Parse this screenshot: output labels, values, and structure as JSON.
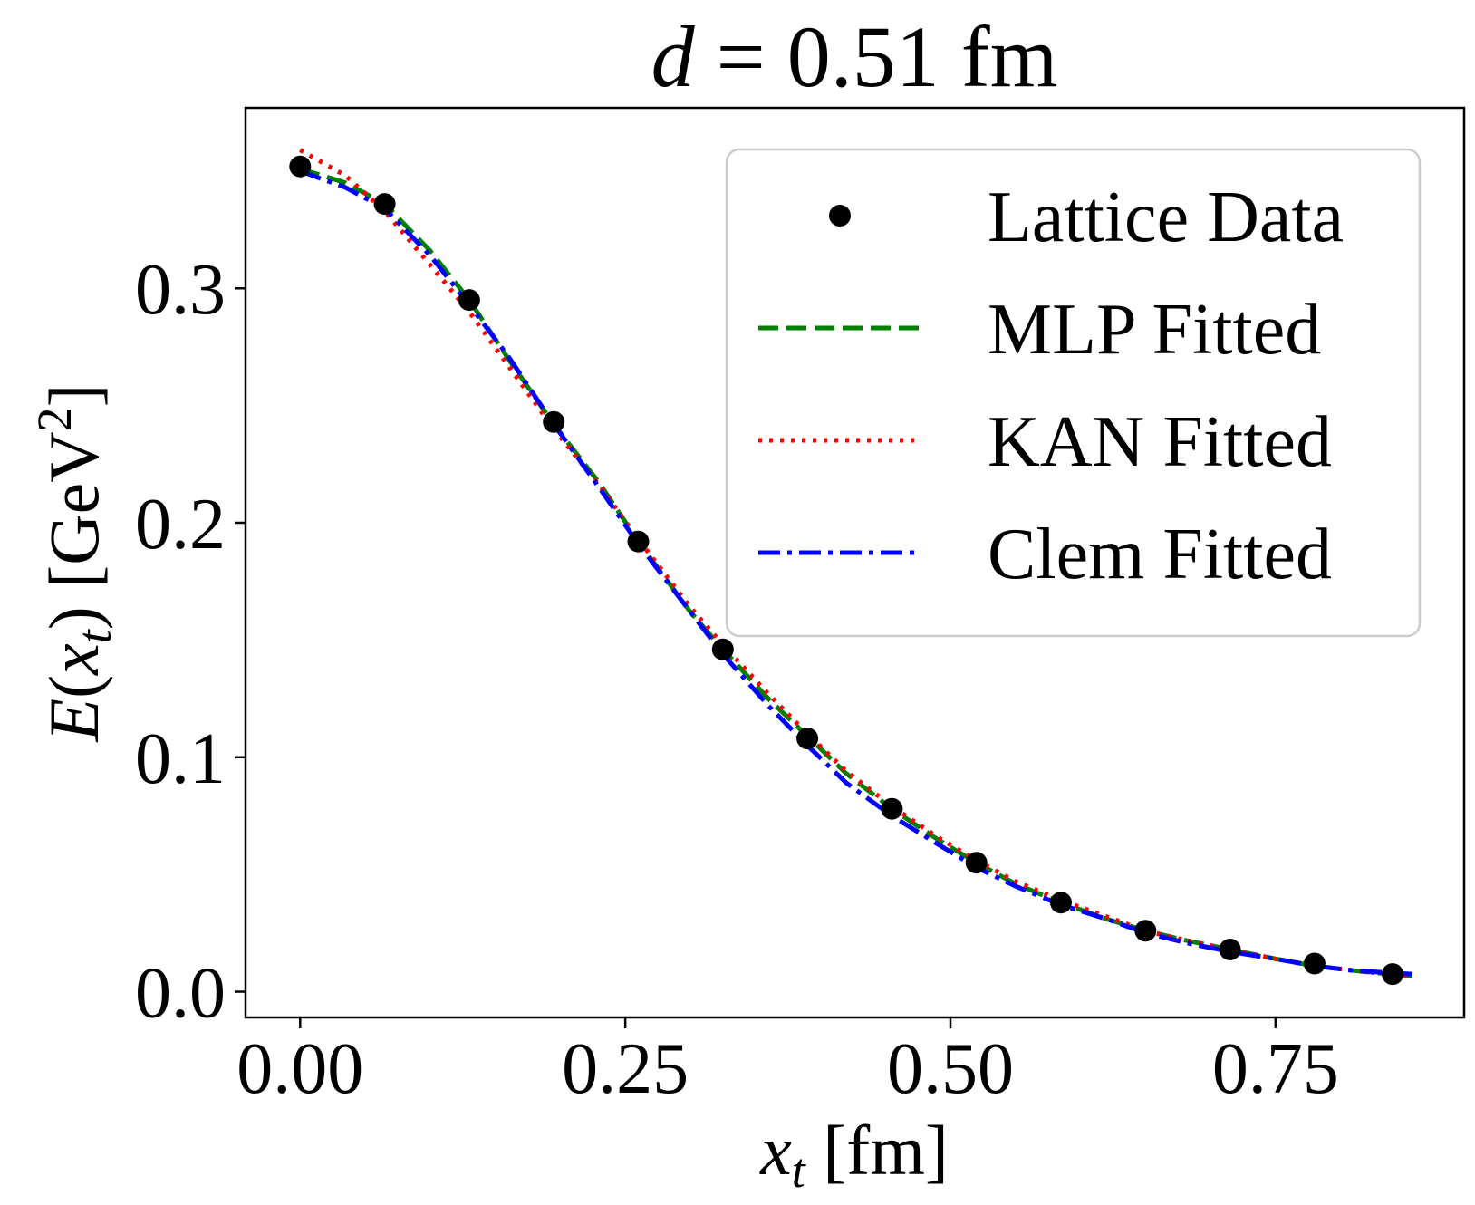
{
  "chart_data": {
    "type": "line",
    "title": {
      "var": "d",
      "rest": " = 0.51 fm"
    },
    "xlabel": {
      "var": "x",
      "sub": "t",
      "unit": " [fm]"
    },
    "ylabel": {
      "fn": "E",
      "var": "x",
      "sub": "t",
      "unit_pre": " [GeV",
      "unit_sup": "2",
      "unit_post": "]"
    },
    "xlim": [
      -0.042,
      0.895
    ],
    "ylim": [
      -0.011,
      0.377
    ],
    "xticks": [
      0.0,
      0.25,
      0.5,
      0.75
    ],
    "xtick_labels": [
      "0.00",
      "0.25",
      "0.50",
      "0.75"
    ],
    "yticks": [
      0.0,
      0.1,
      0.2,
      0.3
    ],
    "ytick_labels": [
      "0.0",
      "0.1",
      "0.2",
      "0.3"
    ],
    "grid": false,
    "legend_position": "top-right",
    "series": [
      {
        "name": "Lattice Data",
        "kind": "scatter",
        "color": "#000000",
        "x": [
          0.0,
          0.065,
          0.13,
          0.195,
          0.26,
          0.325,
          0.39,
          0.455,
          0.52,
          0.585,
          0.65,
          0.715,
          0.78,
          0.84
        ],
        "y": [
          0.352,
          0.336,
          0.295,
          0.243,
          0.192,
          0.146,
          0.108,
          0.078,
          0.055,
          0.038,
          0.026,
          0.018,
          0.012,
          0.0075
        ]
      },
      {
        "name": "MLP Fitted",
        "kind": "line",
        "style": "dashed",
        "color": "#008000",
        "x": [
          0.0,
          0.035,
          0.065,
          0.1,
          0.13,
          0.16,
          0.195,
          0.23,
          0.26,
          0.3,
          0.325,
          0.36,
          0.39,
          0.42,
          0.455,
          0.49,
          0.52,
          0.55,
          0.585,
          0.62,
          0.65,
          0.68,
          0.715,
          0.75,
          0.78,
          0.81,
          0.855
        ],
        "y": [
          0.351,
          0.345,
          0.336,
          0.316,
          0.295,
          0.27,
          0.242,
          0.217,
          0.192,
          0.162,
          0.146,
          0.125,
          0.109,
          0.093,
          0.078,
          0.065,
          0.055,
          0.046,
          0.038,
          0.031,
          0.026,
          0.022,
          0.018,
          0.014,
          0.011,
          0.009,
          0.0065
        ]
      },
      {
        "name": "KAN Fitted",
        "kind": "line",
        "style": "dotted",
        "color": "#ff0000",
        "x": [
          0.0,
          0.035,
          0.065,
          0.1,
          0.13,
          0.16,
          0.195,
          0.23,
          0.26,
          0.3,
          0.325,
          0.36,
          0.39,
          0.42,
          0.455,
          0.49,
          0.52,
          0.55,
          0.585,
          0.62,
          0.65,
          0.68,
          0.715,
          0.75,
          0.78,
          0.81,
          0.855
        ],
        "y": [
          0.359,
          0.348,
          0.333,
          0.31,
          0.29,
          0.267,
          0.24,
          0.216,
          0.193,
          0.164,
          0.148,
          0.127,
          0.11,
          0.094,
          0.079,
          0.066,
          0.056,
          0.047,
          0.039,
          0.032,
          0.026,
          0.022,
          0.018,
          0.014,
          0.011,
          0.009,
          0.0065
        ]
      },
      {
        "name": "Clem Fitted",
        "kind": "line",
        "style": "dashdot",
        "color": "#0000ff",
        "x": [
          0.0,
          0.035,
          0.065,
          0.1,
          0.13,
          0.16,
          0.195,
          0.23,
          0.26,
          0.3,
          0.325,
          0.36,
          0.39,
          0.42,
          0.455,
          0.49,
          0.52,
          0.55,
          0.585,
          0.62,
          0.65,
          0.68,
          0.715,
          0.75,
          0.78,
          0.81,
          0.855
        ],
        "y": [
          0.35,
          0.343,
          0.334,
          0.314,
          0.293,
          0.271,
          0.242,
          0.215,
          0.191,
          0.162,
          0.144,
          0.122,
          0.105,
          0.089,
          0.075,
          0.063,
          0.053,
          0.045,
          0.037,
          0.031,
          0.025,
          0.021,
          0.017,
          0.014,
          0.011,
          0.009,
          0.0075
        ]
      }
    ]
  }
}
